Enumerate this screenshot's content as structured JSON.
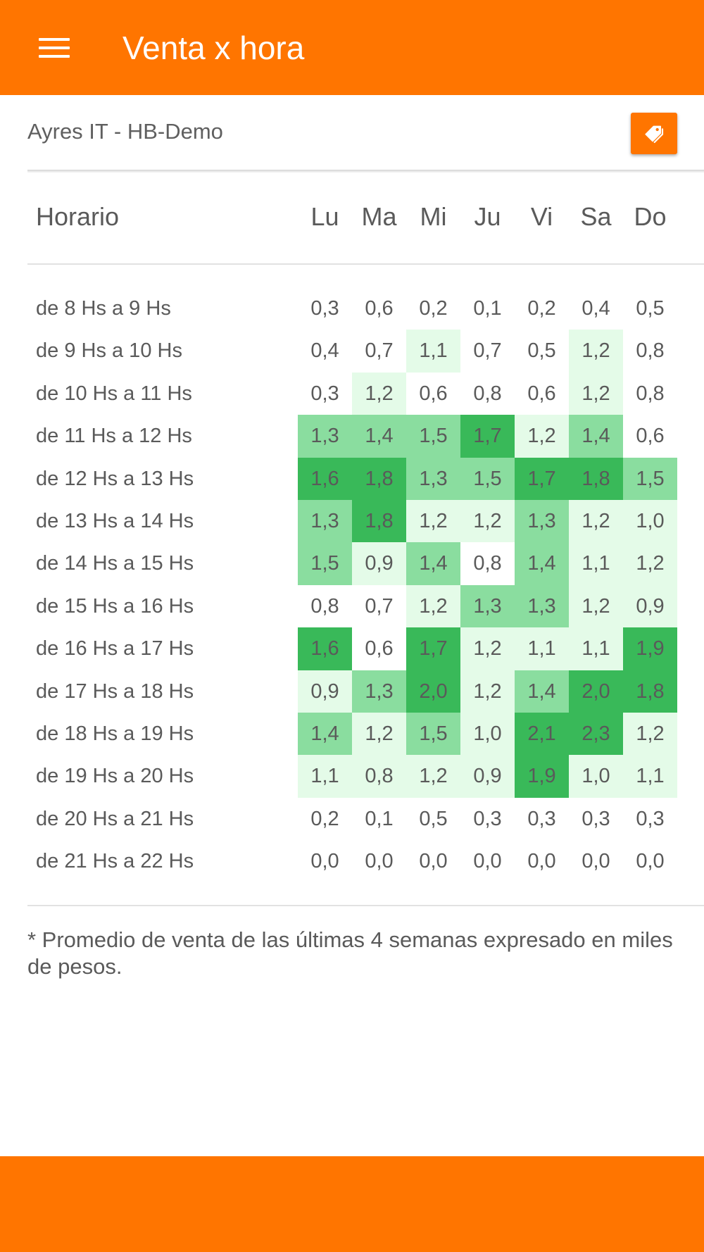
{
  "app": {
    "title": "Venta x hora"
  },
  "header": {
    "company": "Ayres IT - HB-Demo",
    "tag_icon": "tag-icon"
  },
  "colors": {
    "accent": "#ff7500",
    "level_0": "#ffffff",
    "level_1": "#e4fbe8",
    "level_2": "#8add9f",
    "level_3": "#39b959"
  },
  "table": {
    "horario_label": "Horario",
    "days": [
      "Lu",
      "Ma",
      "Mi",
      "Ju",
      "Vi",
      "Sa",
      "Do"
    ],
    "rows": [
      {
        "label": "de 8 Hs a 9 Hs",
        "values": [
          "0,3",
          "0,6",
          "0,2",
          "0,1",
          "0,2",
          "0,4",
          "0,5"
        ],
        "levels": [
          0,
          0,
          0,
          0,
          0,
          0,
          0
        ]
      },
      {
        "label": "de 9 Hs a 10 Hs",
        "values": [
          "0,4",
          "0,7",
          "1,1",
          "0,7",
          "0,5",
          "1,2",
          "0,8"
        ],
        "levels": [
          0,
          0,
          1,
          0,
          0,
          1,
          0
        ]
      },
      {
        "label": "de 10 Hs a 11 Hs",
        "values": [
          "0,3",
          "1,2",
          "0,6",
          "0,8",
          "0,6",
          "1,2",
          "0,8"
        ],
        "levels": [
          0,
          1,
          0,
          0,
          0,
          1,
          0
        ]
      },
      {
        "label": "de 11 Hs a 12 Hs",
        "values": [
          "1,3",
          "1,4",
          "1,5",
          "1,7",
          "1,2",
          "1,4",
          "0,6"
        ],
        "levels": [
          2,
          2,
          2,
          3,
          1,
          2,
          0
        ]
      },
      {
        "label": "de 12 Hs a 13 Hs",
        "values": [
          "1,6",
          "1,8",
          "1,3",
          "1,5",
          "1,7",
          "1,8",
          "1,5"
        ],
        "levels": [
          3,
          3,
          2,
          2,
          3,
          3,
          2
        ]
      },
      {
        "label": "de 13 Hs a 14 Hs",
        "values": [
          "1,3",
          "1,8",
          "1,2",
          "1,2",
          "1,3",
          "1,2",
          "1,0"
        ],
        "levels": [
          2,
          3,
          1,
          1,
          2,
          1,
          1
        ]
      },
      {
        "label": "de 14 Hs a 15 Hs",
        "values": [
          "1,5",
          "0,9",
          "1,4",
          "0,8",
          "1,4",
          "1,1",
          "1,2"
        ],
        "levels": [
          2,
          1,
          2,
          0,
          2,
          1,
          1
        ]
      },
      {
        "label": "de 15 Hs a 16 Hs",
        "values": [
          "0,8",
          "0,7",
          "1,2",
          "1,3",
          "1,3",
          "1,2",
          "0,9"
        ],
        "levels": [
          0,
          0,
          1,
          2,
          2,
          1,
          1
        ]
      },
      {
        "label": "de 16 Hs a 17 Hs",
        "values": [
          "1,6",
          "0,6",
          "1,7",
          "1,2",
          "1,1",
          "1,1",
          "1,9"
        ],
        "levels": [
          3,
          0,
          3,
          1,
          1,
          1,
          3
        ]
      },
      {
        "label": "de 17 Hs a 18 Hs",
        "values": [
          "0,9",
          "1,3",
          "2,0",
          "1,2",
          "1,4",
          "2,0",
          "1,8"
        ],
        "levels": [
          1,
          2,
          3,
          1,
          2,
          3,
          3
        ]
      },
      {
        "label": "de 18 Hs a 19 Hs",
        "values": [
          "1,4",
          "1,2",
          "1,5",
          "1,0",
          "2,1",
          "2,3",
          "1,2"
        ],
        "levels": [
          2,
          1,
          2,
          1,
          3,
          3,
          1
        ]
      },
      {
        "label": "de 19 Hs a 20 Hs",
        "values": [
          "1,1",
          "0,8",
          "1,2",
          "0,9",
          "1,9",
          "1,0",
          "1,1"
        ],
        "levels": [
          1,
          1,
          1,
          1,
          3,
          1,
          1
        ]
      },
      {
        "label": "de 20 Hs a 21 Hs",
        "values": [
          "0,2",
          "0,1",
          "0,5",
          "0,3",
          "0,3",
          "0,3",
          "0,3"
        ],
        "levels": [
          0,
          0,
          0,
          0,
          0,
          0,
          0
        ]
      },
      {
        "label": "de 21 Hs a 22 Hs",
        "values": [
          "0,0",
          "0,0",
          "0,0",
          "0,0",
          "0,0",
          "0,0",
          "0,0"
        ],
        "levels": [
          0,
          0,
          0,
          0,
          0,
          0,
          0
        ]
      }
    ]
  },
  "footnote": "* Promedio de venta de las últimas 4 semanas expresado en miles de pesos."
}
